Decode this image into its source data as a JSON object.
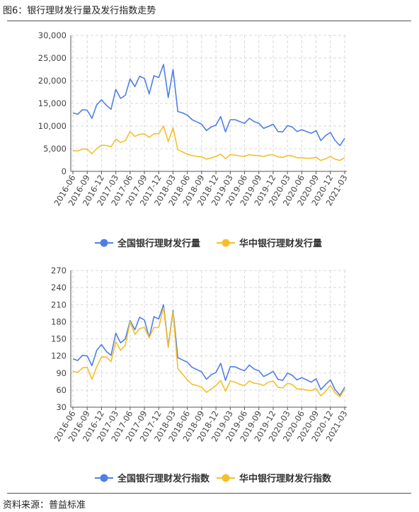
{
  "figure_title": "图6：银行理财发行量及发行指数走势",
  "source": "资料来源：普益标准",
  "chart_data": [
    {
      "type": "line",
      "title": "",
      "x": [
        "2016-06",
        "2016-07",
        "2016-08",
        "2016-09",
        "2016-10",
        "2016-11",
        "2016-12",
        "2017-01",
        "2017-02",
        "2017-03",
        "2017-04",
        "2017-05",
        "2017-06",
        "2017-07",
        "2017-08",
        "2017-09",
        "2017-10",
        "2017-11",
        "2017-12",
        "2018-01",
        "2018-02",
        "2018-03",
        "2018-04",
        "2018-05",
        "2018-06",
        "2018-07",
        "2018-08",
        "2018-09",
        "2018-10",
        "2018-11",
        "2018-12",
        "2019-01",
        "2019-02",
        "2019-03",
        "2019-04",
        "2019-05",
        "2019-06",
        "2019-07",
        "2019-08",
        "2019-09",
        "2019-10",
        "2019-11",
        "2019-12",
        "2020-01",
        "2020-02",
        "2020-03",
        "2020-04",
        "2020-05",
        "2020-06",
        "2020-07",
        "2020-08",
        "2020-09",
        "2020-10",
        "2020-11",
        "2020-12",
        "2021-01",
        "2021-02",
        "2021-03"
      ],
      "xticks": [
        "2016-06",
        "2016-09",
        "2016-12",
        "2017-03",
        "2017-06",
        "2017-09",
        "2017-12",
        "2018-03",
        "2018-06",
        "2018-09",
        "2018-12",
        "2019-03",
        "2019-06",
        "2019-09",
        "2019-12",
        "2020-03",
        "2020-06",
        "2020-09",
        "2020-12",
        "2021-03"
      ],
      "yticks": [
        "0",
        "5,000",
        "10,000",
        "15,000",
        "20,000",
        "25,000",
        "30,000"
      ],
      "ylim": [
        0,
        30000
      ],
      "grid": true,
      "legend_position": "bottom-center",
      "series": [
        {
          "name": "全国银行理财发行量",
          "color": "#4f7fe6",
          "values": [
            12900,
            12600,
            13600,
            13500,
            11700,
            14700,
            15800,
            14600,
            13700,
            18100,
            16100,
            16800,
            20400,
            18700,
            21000,
            20500,
            17100,
            21100,
            20700,
            23600,
            16300,
            22500,
            13200,
            12900,
            12400,
            11400,
            10900,
            10400,
            9000,
            9800,
            10200,
            12100,
            8700,
            11400,
            11400,
            11000,
            10600,
            11700,
            11000,
            10600,
            9500,
            9900,
            10400,
            8800,
            8700,
            10100,
            9800,
            8800,
            9200,
            8800,
            8400,
            9000,
            6800,
            7900,
            8600,
            6800,
            5700,
            7300
          ]
        },
        {
          "name": "华中银行理财发行量",
          "color": "#f5bf2a",
          "values": [
            4600,
            4500,
            4900,
            4900,
            3900,
            5000,
            5800,
            5700,
            5400,
            7100,
            6400,
            6800,
            8800,
            7700,
            8200,
            8300,
            7500,
            8300,
            8300,
            10000,
            6600,
            9600,
            4800,
            4300,
            3800,
            3500,
            3300,
            3200,
            2700,
            3000,
            3300,
            3800,
            2800,
            3700,
            3600,
            3400,
            3300,
            3700,
            3500,
            3500,
            3300,
            3600,
            3700,
            3200,
            3100,
            3500,
            3400,
            3000,
            3000,
            2900,
            2900,
            3100,
            2400,
            2800,
            3300,
            2700,
            2400,
            3000
          ]
        }
      ]
    },
    {
      "type": "line",
      "title": "",
      "x": [
        "2016-06",
        "2016-07",
        "2016-08",
        "2016-09",
        "2016-10",
        "2016-11",
        "2016-12",
        "2017-01",
        "2017-02",
        "2017-03",
        "2017-04",
        "2017-05",
        "2017-06",
        "2017-07",
        "2017-08",
        "2017-09",
        "2017-10",
        "2017-11",
        "2017-12",
        "2018-01",
        "2018-02",
        "2018-03",
        "2018-04",
        "2018-05",
        "2018-06",
        "2018-07",
        "2018-08",
        "2018-09",
        "2018-10",
        "2018-11",
        "2018-12",
        "2019-01",
        "2019-02",
        "2019-03",
        "2019-04",
        "2019-05",
        "2019-06",
        "2019-07",
        "2019-08",
        "2019-09",
        "2019-10",
        "2019-11",
        "2019-12",
        "2020-01",
        "2020-02",
        "2020-03",
        "2020-04",
        "2020-05",
        "2020-06",
        "2020-07",
        "2020-08",
        "2020-09",
        "2020-10",
        "2020-11",
        "2020-12",
        "2021-01",
        "2021-02",
        "2021-03"
      ],
      "xticks": [
        "2016-06",
        "2016-09",
        "2016-12",
        "2017-03",
        "2017-06",
        "2017-09",
        "2017-12",
        "2018-03",
        "2018-06",
        "2018-09",
        "2018-12",
        "2019-03",
        "2019-06",
        "2019-09",
        "2019-12",
        "2020-03",
        "2020-06",
        "2020-09",
        "2020-12",
        "2021-03"
      ],
      "yticks": [
        "30",
        "60",
        "90",
        "120",
        "150",
        "180",
        "210",
        "240",
        "270"
      ],
      "ylim": [
        30,
        270
      ],
      "grid": true,
      "legend_position": "bottom-center",
      "series": [
        {
          "name": "全国银行理财发行指数",
          "color": "#4f7fe6",
          "values": [
            115,
            112,
            121,
            120,
            103,
            130,
            140,
            128,
            121,
            160,
            143,
            150,
            182,
            166,
            188,
            183,
            152,
            189,
            185,
            210,
            137,
            200,
            117,
            113,
            109,
            100,
            96,
            92,
            79,
            87,
            91,
            107,
            77,
            101,
            101,
            97,
            94,
            104,
            97,
            94,
            84,
            88,
            93,
            79,
            77,
            90,
            86,
            78,
            82,
            78,
            74,
            80,
            61,
            70,
            78,
            61,
            51,
            65
          ]
        },
        {
          "name": "华中银行理财发行指数",
          "color": "#f5bf2a",
          "values": [
            93,
            91,
            99,
            100,
            79,
            101,
            118,
            118,
            110,
            145,
            130,
            139,
            180,
            158,
            168,
            170,
            152,
            170,
            170,
            205,
            135,
            197,
            98,
            88,
            78,
            70,
            68,
            65,
            56,
            62,
            68,
            77,
            58,
            76,
            74,
            70,
            68,
            76,
            72,
            71,
            68,
            74,
            76,
            65,
            64,
            72,
            70,
            62,
            62,
            60,
            59,
            63,
            50,
            58,
            68,
            55,
            48,
            62
          ]
        }
      ]
    }
  ]
}
